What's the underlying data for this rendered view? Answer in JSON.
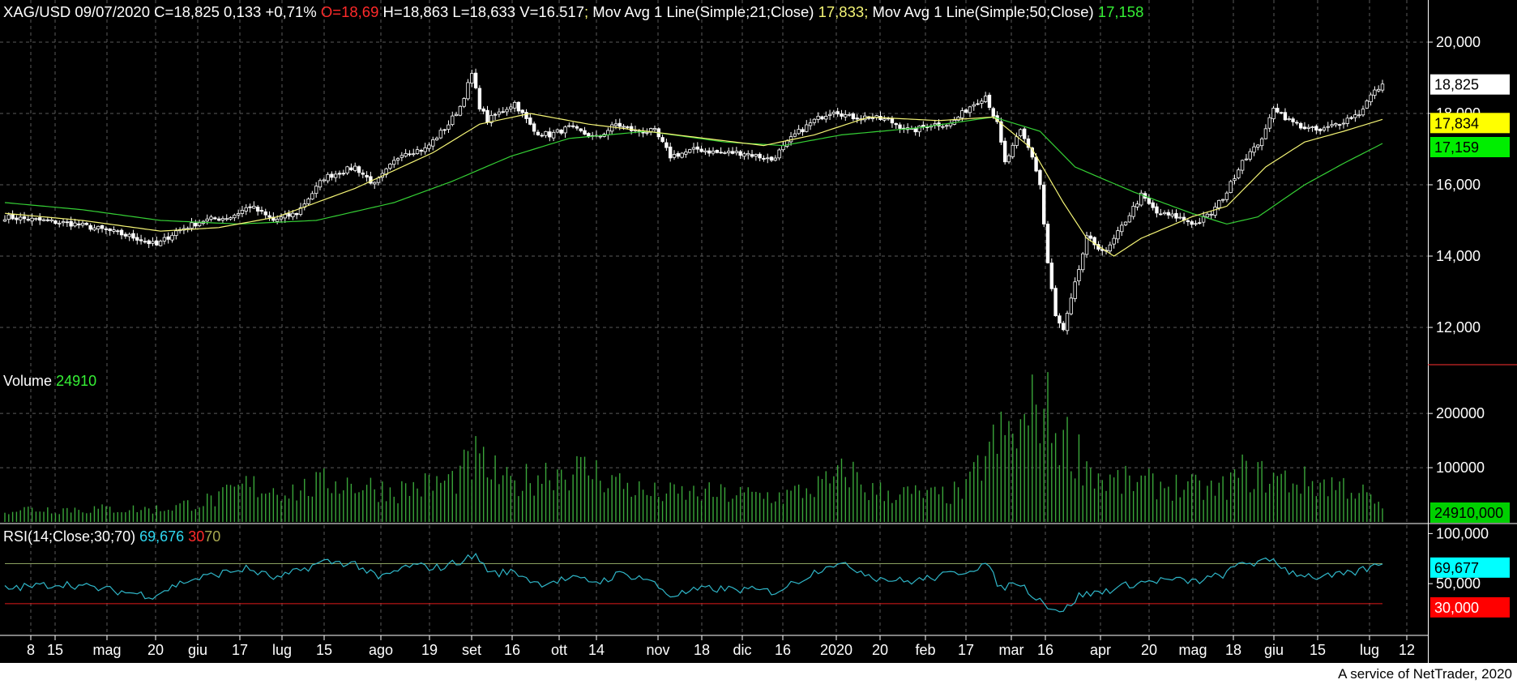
{
  "header": {
    "symbol": "XAG/USD",
    "date": "09/07/2020",
    "close": "C=18,825",
    "change": "0,133",
    "change_pct": "+0,71%",
    "open": "O=18,69",
    "high": "H=18,863",
    "low": "L=18,633",
    "volume": "V=16.517",
    "sep": ";",
    "ma21_label": "Mov Avg 1 Line(Simple;21;Close)",
    "ma21_value": "17,833",
    "ma50_label": "Mov Avg 1 Line(Simple;50;Close)",
    "ma50_value": "17,158"
  },
  "volume_panel": {
    "label": "Volume",
    "value": "24910"
  },
  "rsi_panel": {
    "label": "RSI(14;Close;30;70)",
    "value": "69,676",
    "lower": "30",
    "upper": "70"
  },
  "footer": "A service of NetTrader, 2020",
  "colors": {
    "background": "#000000",
    "grid": "#5a5a5a",
    "candle": "#ffffff",
    "ma21": "#f5f576",
    "ma50": "#35d035",
    "volume": "#3aa63a",
    "rsi": "#2fb6c8",
    "rsi_upper": "#8aa060",
    "rsi_lower": "#e01a1a",
    "axis_separator": "#ff3030"
  },
  "chart_data": [
    {
      "type": "candlestick",
      "name": "price",
      "ylim": [
        11000,
        21000
      ],
      "y_ticks": [
        "20,000",
        "18,000",
        "16,000",
        "14,000",
        "12,000"
      ],
      "y_tick_values": [
        20000,
        18000,
        16000,
        14000,
        12000
      ],
      "last_tags": [
        {
          "label": "18,825",
          "value": 18825,
          "bg": "#ffffff",
          "fg": "#000000"
        },
        {
          "label": "17,834",
          "value": 17834,
          "bg": "#ffff00",
          "fg": "#000000"
        },
        {
          "label": "17,159",
          "value": 17159,
          "bg": "#00ee00",
          "fg": "#000000"
        }
      ],
      "x_labels": [
        "8",
        "15",
        "mag",
        "20",
        "giu",
        "17",
        "lug",
        "15",
        "ago",
        "19",
        "set",
        "16",
        "ott",
        "14",
        "nov",
        "18",
        "dic",
        "16",
        "2020",
        "20",
        "feb",
        "17",
        "mar",
        "16",
        "apr",
        "20",
        "mag",
        "18",
        "giu",
        "15",
        "lug",
        "12"
      ],
      "close_anchors": [
        [
          0,
          15100
        ],
        [
          9,
          15000
        ],
        [
          18,
          14900
        ],
        [
          27,
          14700
        ],
        [
          34,
          14500
        ],
        [
          39,
          14300
        ],
        [
          44,
          14700
        ],
        [
          51,
          15000
        ],
        [
          58,
          15100
        ],
        [
          63,
          15400
        ],
        [
          69,
          15000
        ],
        [
          75,
          15200
        ],
        [
          82,
          16200
        ],
        [
          90,
          16500
        ],
        [
          95,
          16000
        ],
        [
          102,
          16900
        ],
        [
          108,
          17000
        ],
        [
          114,
          17700
        ],
        [
          117,
          18200
        ],
        [
          120,
          19100
        ],
        [
          122,
          18200
        ],
        [
          124,
          17800
        ],
        [
          131,
          18300
        ],
        [
          136,
          17500
        ],
        [
          140,
          17400
        ],
        [
          145,
          17600
        ],
        [
          152,
          17300
        ],
        [
          157,
          17700
        ],
        [
          162,
          17500
        ],
        [
          167,
          17500
        ],
        [
          171,
          16800
        ],
        [
          178,
          17000
        ],
        [
          183,
          16900
        ],
        [
          190,
          16900
        ],
        [
          197,
          16700
        ],
        [
          203,
          17400
        ],
        [
          208,
          17800
        ],
        [
          213,
          18100
        ],
        [
          217,
          17900
        ],
        [
          222,
          17900
        ],
        [
          227,
          17800
        ],
        [
          233,
          17500
        ],
        [
          238,
          17700
        ],
        [
          243,
          17700
        ],
        [
          248,
          18200
        ],
        [
          252,
          18500
        ],
        [
          255,
          17700
        ],
        [
          257,
          16600
        ],
        [
          261,
          17500
        ],
        [
          264,
          16800
        ],
        [
          266,
          16000
        ],
        [
          268,
          13800
        ],
        [
          270,
          12300
        ],
        [
          272,
          11900
        ],
        [
          275,
          13200
        ],
        [
          278,
          14500
        ],
        [
          283,
          14100
        ],
        [
          288,
          15000
        ],
        [
          292,
          15700
        ],
        [
          296,
          15200
        ],
        [
          301,
          15100
        ],
        [
          306,
          14900
        ],
        [
          310,
          15200
        ],
        [
          314,
          15800
        ],
        [
          318,
          16700
        ],
        [
          321,
          17000
        ],
        [
          324,
          17500
        ],
        [
          326,
          18200
        ],
        [
          330,
          17800
        ],
        [
          334,
          17600
        ],
        [
          338,
          17500
        ],
        [
          344,
          17800
        ],
        [
          348,
          18000
        ],
        [
          351,
          18500
        ],
        [
          354,
          18825
        ]
      ],
      "ma21_anchors": [
        [
          0,
          15200
        ],
        [
          20,
          15000
        ],
        [
          40,
          14700
        ],
        [
          55,
          14800
        ],
        [
          70,
          15100
        ],
        [
          90,
          15900
        ],
        [
          110,
          16900
        ],
        [
          122,
          17700
        ],
        [
          135,
          18000
        ],
        [
          150,
          17700
        ],
        [
          165,
          17500
        ],
        [
          180,
          17300
        ],
        [
          195,
          17100
        ],
        [
          208,
          17400
        ],
        [
          222,
          17900
        ],
        [
          240,
          17800
        ],
        [
          254,
          17900
        ],
        [
          264,
          17000
        ],
        [
          272,
          15500
        ],
        [
          278,
          14500
        ],
        [
          285,
          14000
        ],
        [
          292,
          14500
        ],
        [
          305,
          15100
        ],
        [
          314,
          15400
        ],
        [
          324,
          16500
        ],
        [
          334,
          17200
        ],
        [
          344,
          17500
        ],
        [
          354,
          17833
        ]
      ],
      "ma50_anchors": [
        [
          0,
          15500
        ],
        [
          20,
          15300
        ],
        [
          40,
          15000
        ],
        [
          60,
          14900
        ],
        [
          80,
          15000
        ],
        [
          100,
          15500
        ],
        [
          115,
          16100
        ],
        [
          130,
          16800
        ],
        [
          145,
          17300
        ],
        [
          165,
          17500
        ],
        [
          185,
          17200
        ],
        [
          200,
          17100
        ],
        [
          215,
          17400
        ],
        [
          235,
          17600
        ],
        [
          254,
          17900
        ],
        [
          266,
          17500
        ],
        [
          275,
          16500
        ],
        [
          290,
          15800
        ],
        [
          305,
          15200
        ],
        [
          314,
          14900
        ],
        [
          322,
          15100
        ],
        [
          334,
          16000
        ],
        [
          344,
          16600
        ],
        [
          354,
          17158
        ]
      ]
    },
    {
      "type": "bar",
      "name": "volume",
      "ylim": [
        0,
        260000
      ],
      "y_ticks": [
        "200000",
        "100000"
      ],
      "y_tick_values": [
        200000,
        100000
      ],
      "last_tag": {
        "label": "24910,000",
        "bg": "#00d000",
        "fg": "#000000"
      },
      "volume_anchors": [
        [
          0,
          25000
        ],
        [
          40,
          25000
        ],
        [
          55,
          45000
        ],
        [
          62,
          70000
        ],
        [
          75,
          60000
        ],
        [
          85,
          80000
        ],
        [
          100,
          60000
        ],
        [
          115,
          80000
        ],
        [
          121,
          120000
        ],
        [
          130,
          70000
        ],
        [
          140,
          100000
        ],
        [
          150,
          100000
        ],
        [
          165,
          55000
        ],
        [
          180,
          55000
        ],
        [
          200,
          50000
        ],
        [
          212,
          75000
        ],
        [
          217,
          100000
        ],
        [
          222,
          60000
        ],
        [
          240,
          50000
        ],
        [
          247,
          60000
        ],
        [
          252,
          130000
        ],
        [
          256,
          160000
        ],
        [
          262,
          180000
        ],
        [
          266,
          240000
        ],
        [
          270,
          180000
        ],
        [
          276,
          130000
        ],
        [
          282,
          80000
        ],
        [
          300,
          70000
        ],
        [
          312,
          60000
        ],
        [
          318,
          95000
        ],
        [
          330,
          80000
        ],
        [
          345,
          70000
        ],
        [
          350,
          50000
        ],
        [
          354,
          24910
        ]
      ]
    },
    {
      "type": "line",
      "name": "rsi",
      "ylim": [
        0,
        110
      ],
      "y_ticks": [
        "100,000",
        "50,000"
      ],
      "y_tick_values": [
        100,
        50
      ],
      "upper_line": 70,
      "lower_line": 30,
      "last_tags": [
        {
          "label": "69,677",
          "value": 69.677,
          "bg": "#00ffff",
          "fg": "#000000"
        },
        {
          "label": "30,000",
          "value": 30,
          "bg": "#ff0000",
          "fg": "#ffffff"
        }
      ],
      "rsi_anchors": [
        [
          0,
          45
        ],
        [
          15,
          50
        ],
        [
          30,
          42
        ],
        [
          38,
          38
        ],
        [
          46,
          52
        ],
        [
          55,
          60
        ],
        [
          62,
          65
        ],
        [
          70,
          55
        ],
        [
          82,
          72
        ],
        [
          90,
          70
        ],
        [
          96,
          55
        ],
        [
          104,
          68
        ],
        [
          112,
          66
        ],
        [
          118,
          74
        ],
        [
          121,
          78
        ],
        [
          125,
          60
        ],
        [
          131,
          62
        ],
        [
          137,
          50
        ],
        [
          145,
          55
        ],
        [
          153,
          52
        ],
        [
          158,
          60
        ],
        [
          165,
          55
        ],
        [
          171,
          38
        ],
        [
          180,
          45
        ],
        [
          190,
          44
        ],
        [
          198,
          42
        ],
        [
          205,
          55
        ],
        [
          212,
          70
        ],
        [
          218,
          66
        ],
        [
          224,
          56
        ],
        [
          232,
          52
        ],
        [
          240,
          57
        ],
        [
          248,
          64
        ],
        [
          252,
          70
        ],
        [
          256,
          45
        ],
        [
          260,
          52
        ],
        [
          264,
          40
        ],
        [
          268,
          28
        ],
        [
          272,
          22
        ],
        [
          276,
          38
        ],
        [
          282,
          42
        ],
        [
          290,
          50
        ],
        [
          298,
          54
        ],
        [
          306,
          52
        ],
        [
          314,
          60
        ],
        [
          318,
          72
        ],
        [
          322,
          70
        ],
        [
          326,
          74
        ],
        [
          330,
          62
        ],
        [
          338,
          56
        ],
        [
          346,
          60
        ],
        [
          354,
          69.676
        ]
      ]
    }
  ]
}
